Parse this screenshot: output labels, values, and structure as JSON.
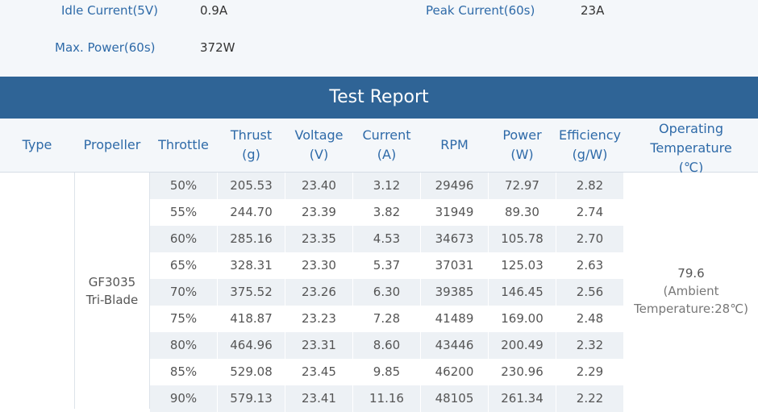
{
  "specs": {
    "idle_current_label": "Idle Current(5V)",
    "idle_current_value": "0.9A",
    "peak_current_label": "Peak Current(60s)",
    "peak_current_value": "23A",
    "max_power_label": "Max. Power(60s)",
    "max_power_value": "372W"
  },
  "report": {
    "title": "Test Report",
    "headers": {
      "type": "Type",
      "propeller": "Propeller",
      "throttle": "Throttle",
      "thrust": [
        "Thrust",
        "(g)"
      ],
      "voltage": [
        "Voltage",
        "(V)"
      ],
      "current": [
        "Current",
        "(A)"
      ],
      "rpm": "RPM",
      "power": [
        "Power",
        "(W)"
      ],
      "efficiency": [
        "Efficiency",
        "(g/W)"
      ],
      "temp": [
        "Operating",
        "Temperature",
        "(℃)"
      ]
    },
    "propeller": [
      "GF3035",
      "Tri-Blade"
    ],
    "temperature": [
      "79.6",
      "(Ambient",
      "Temperature:28℃)"
    ],
    "rows": [
      [
        "50%",
        "205.53",
        "23.40",
        "3.12",
        "29496",
        "72.97",
        "2.82"
      ],
      [
        "55%",
        "244.70",
        "23.39",
        "3.82",
        "31949",
        "89.30",
        "2.74"
      ],
      [
        "60%",
        "285.16",
        "23.35",
        "4.53",
        "34673",
        "105.78",
        "2.70"
      ],
      [
        "65%",
        "328.31",
        "23.30",
        "5.37",
        "37031",
        "125.03",
        "2.63"
      ],
      [
        "70%",
        "375.52",
        "23.26",
        "6.30",
        "39385",
        "146.45",
        "2.56"
      ],
      [
        "75%",
        "418.87",
        "23.23",
        "7.28",
        "41489",
        "169.00",
        "2.48"
      ],
      [
        "80%",
        "464.96",
        "23.31",
        "8.60",
        "43446",
        "200.49",
        "2.32"
      ],
      [
        "85%",
        "529.08",
        "23.45",
        "9.85",
        "46200",
        "230.96",
        "2.29"
      ],
      [
        "90%",
        "579.13",
        "23.41",
        "11.16",
        "48105",
        "261.34",
        "2.22"
      ]
    ]
  }
}
